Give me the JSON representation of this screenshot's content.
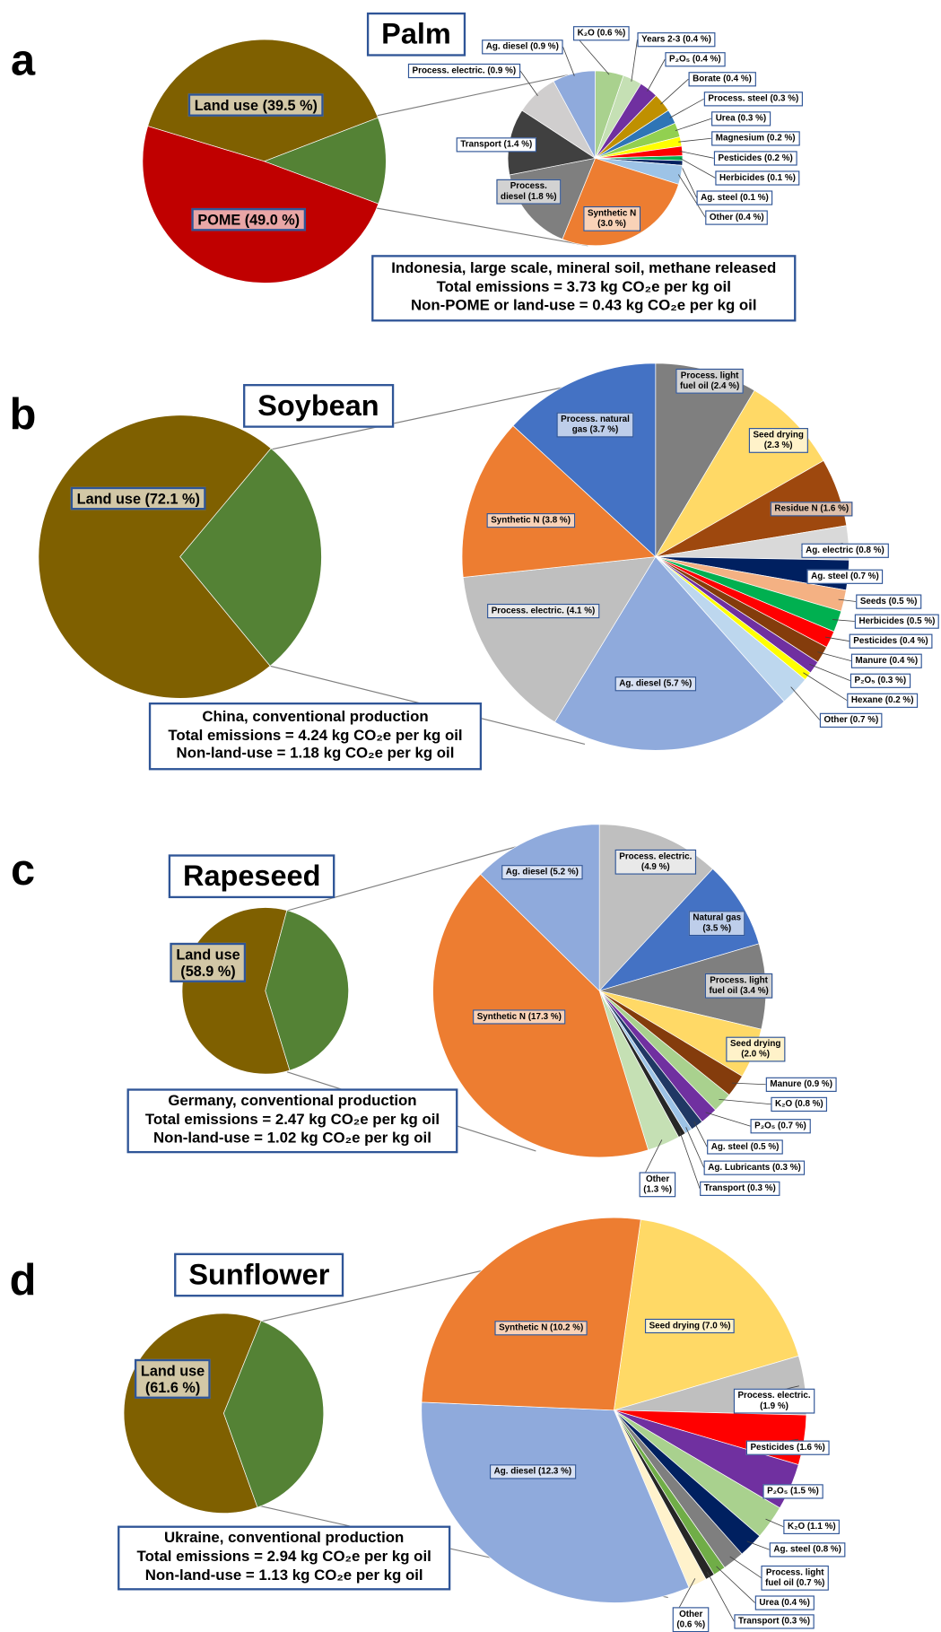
{
  "chart_data": [
    {
      "type": "pie",
      "panel": "a",
      "title": "Palm",
      "labels": [
        "Land use (39.5 %)",
        "POME (49.0 %)",
        null
      ],
      "values": [
        39.5,
        49.0,
        11.5
      ],
      "colors": [
        "#7f6000",
        "#c00000",
        "#548235"
      ],
      "detail": {
        "labels": [
          "K₂O (0.6 %)",
          "Years 2-3 (0.4 %)",
          "P₂O₅ (0.4 %)",
          "Borate (0.4 %)",
          "Process. steel (0.3 %)",
          "Urea (0.3 %)",
          "Magnesium (0.2 %)",
          "Pesticides (0.2 %)",
          "Herbicides (0.1 %)",
          "Ag. steel (0.1 %)",
          "Other (0.4 %)",
          "Synthetic N\n(3.0 %)",
          "Process.\ndiesel (1.8 %)",
          "Transport (1.4 %)",
          "Process. electric. (0.9 %)",
          "Ag. diesel (0.9 %)"
        ],
        "values": [
          0.6,
          0.4,
          0.4,
          0.4,
          0.3,
          0.3,
          0.2,
          0.2,
          0.1,
          0.1,
          0.4,
          3.0,
          1.8,
          1.4,
          0.9,
          0.9
        ],
        "colors": [
          "#a9d18e",
          "#c5e0b4",
          "#7030a0",
          "#bf9000",
          "#2e75b6",
          "#92d050",
          "#ffff00",
          "#ff0000",
          "#00b050",
          "#002060",
          "#9dc3e6",
          "#ed7d31",
          "#7f7f7f",
          "#404040",
          "#d0cece",
          "#8faadc"
        ]
      },
      "annotations": [
        "Indonesia, large scale, mineral soil, methane released",
        "Total emissions = 3.73 kg CO₂e per kg oil",
        "Non-POME or land-use = 0.43 kg CO₂e per kg oil"
      ]
    },
    {
      "type": "pie",
      "panel": "b",
      "title": "Soybean",
      "labels": [
        "Land use (72.1 %)",
        null
      ],
      "values": [
        72.1,
        27.9
      ],
      "colors": [
        "#7f6000",
        "#548235"
      ],
      "detail": {
        "labels": [
          "Process. light\nfuel oil (2.4 %)",
          "Seed drying\n(2.3 %)",
          "Residue N (1.6 %)",
          "Ag. electric (0.8 %)",
          "Ag. steel (0.7 %)",
          "Seeds (0.5 %)",
          "Herbicides (0.5 %)",
          "Pesticides (0.4 %)",
          "Manure (0.4 %)",
          "P₂O₅ (0.3 %)",
          "Hexane (0.2 %)",
          "Other (0.7 %)",
          "Ag. diesel (5.7 %)",
          "Process. electric. (4.1 %)",
          "Synthetic N (3.8 %)",
          "Process. natural\ngas (3.7 %)"
        ],
        "values": [
          2.4,
          2.3,
          1.6,
          0.8,
          0.7,
          0.5,
          0.5,
          0.4,
          0.4,
          0.3,
          0.2,
          0.7,
          5.7,
          4.1,
          3.8,
          3.7
        ],
        "colors": [
          "#7f7f7f",
          "#ffd966",
          "#9e480e",
          "#d9d9d9",
          "#002060",
          "#f4b183",
          "#00b050",
          "#ff0000",
          "#843c0c",
          "#7030a0",
          "#ffff00",
          "#bdd7ee",
          "#8faadc",
          "#bfbfbf",
          "#ed7d31",
          "#4472c4"
        ]
      },
      "annotations": [
        "China, conventional production",
        "Total emissions = 4.24 kg CO₂e per kg oil",
        "Non-land-use = 1.18 kg CO₂e per kg oil"
      ]
    },
    {
      "type": "pie",
      "panel": "c",
      "title": "Rapeseed",
      "labels": [
        "Land use\n(58.9 %)",
        null
      ],
      "values": [
        58.9,
        41.1
      ],
      "colors": [
        "#7f6000",
        "#548235"
      ],
      "detail": {
        "labels": [
          "Process. electric.\n(4.9 %)",
          "Natural gas\n(3.5 %)",
          "Process. light\nfuel oil (3.4 %)",
          "Seed drying\n(2.0 %)",
          "Manure (0.9 %)",
          "K₂O (0.8 %)",
          "P₂O₅ (0.7 %)",
          "Ag. steel (0.5 %)",
          "Ag. Lubricants (0.3 %)",
          "Transport (0.3 %)",
          "Other\n(1.3 %)",
          "Synthetic N (17.3 %)",
          "Ag. diesel (5.2 %)"
        ],
        "values": [
          4.9,
          3.5,
          3.4,
          2.0,
          0.9,
          0.8,
          0.7,
          0.5,
          0.3,
          0.3,
          1.3,
          17.3,
          5.2
        ],
        "colors": [
          "#bfbfbf",
          "#4472c4",
          "#7f7f7f",
          "#ffd966",
          "#843c0c",
          "#a9d18e",
          "#7030a0",
          "#203864",
          "#9dc3e6",
          "#262626",
          "#c5e0b4",
          "#ed7d31",
          "#8faadc"
        ]
      },
      "annotations": [
        "Germany, conventional production",
        "Total emissions = 2.47 kg CO₂e per kg oil",
        "Non-land-use = 1.02 kg CO₂e per kg oil"
      ]
    },
    {
      "type": "pie",
      "panel": "d",
      "title": "Sunflower",
      "labels": [
        "Land use\n(61.6 %)",
        null
      ],
      "values": [
        61.6,
        38.4
      ],
      "colors": [
        "#7f6000",
        "#548235"
      ],
      "detail": {
        "labels": [
          "Seed drying (7.0 %)",
          "Process. electric.\n(1.9 %)",
          "Pesticides (1.6 %)",
          "P₂O₅ (1.5 %)",
          "K₂O (1.1 %)",
          "Ag. steel (0.8 %)",
          "Process. light\nfuel oil (0.7 %)",
          "Urea (0.4 %)",
          "Transport (0.3 %)",
          "Other\n(0.6 %)",
          "Ag. diesel (12.3 %)",
          "Synthetic N (10.2 %)"
        ],
        "values": [
          7.0,
          1.9,
          1.6,
          1.5,
          1.1,
          0.8,
          0.7,
          0.4,
          0.3,
          0.6,
          12.3,
          10.2
        ],
        "colors": [
          "#ffd966",
          "#bfbfbf",
          "#ff0000",
          "#7030a0",
          "#a9d18e",
          "#002060",
          "#7f7f7f",
          "#70ad47",
          "#262626",
          "#fff2cc",
          "#8faadc",
          "#ed7d31"
        ]
      },
      "annotations": [
        "Ukraine, conventional production",
        "Total emissions = 2.94 kg CO₂e per kg oil",
        "Non-land-use = 1.13 kg CO₂e per kg oil"
      ]
    }
  ]
}
